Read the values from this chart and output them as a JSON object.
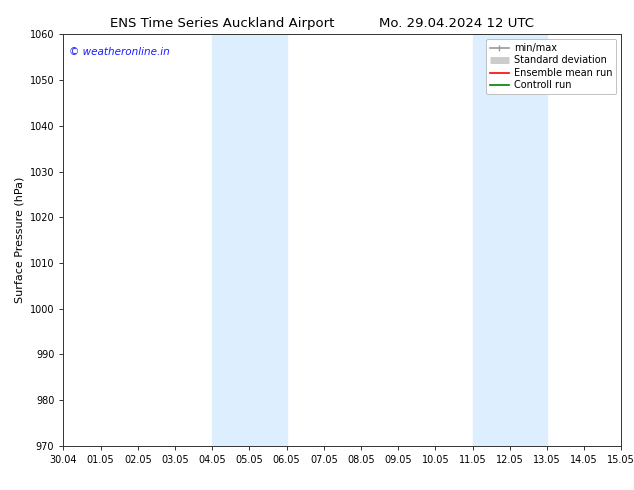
{
  "title_left": "ENS Time Series Auckland Airport",
  "title_right": "Mo. 29.04.2024 12 UTC",
  "ylabel": "Surface Pressure (hPa)",
  "ylim": [
    970,
    1060
  ],
  "yticks": [
    970,
    980,
    990,
    1000,
    1010,
    1020,
    1030,
    1040,
    1050,
    1060
  ],
  "xtick_labels": [
    "30.04",
    "01.05",
    "02.05",
    "03.05",
    "04.05",
    "05.05",
    "06.05",
    "07.05",
    "08.05",
    "09.05",
    "10.05",
    "11.05",
    "12.05",
    "13.05",
    "14.05",
    "15.05"
  ],
  "xtick_positions": [
    0,
    1,
    2,
    3,
    4,
    5,
    6,
    7,
    8,
    9,
    10,
    11,
    12,
    13,
    14,
    15
  ],
  "shade_bands": [
    {
      "x_start": 4.0,
      "x_end": 5.5,
      "color": "#ddeeff",
      "alpha": 1.0
    },
    {
      "x_start": 5.5,
      "x_end": 6.0,
      "color": "#ddeeff",
      "alpha": 1.0
    },
    {
      "x_start": 11.0,
      "x_end": 12.5,
      "color": "#ddeeff",
      "alpha": 1.0
    },
    {
      "x_start": 12.5,
      "x_end": 13.0,
      "color": "#ddeeff",
      "alpha": 1.0
    }
  ],
  "watermark_text": "© weatheronline.in",
  "watermark_color": "#1a1aff",
  "background_color": "#ffffff",
  "legend_entries": [
    {
      "label": "min/max",
      "color": "#999999",
      "lw": 1.2,
      "style": "solid"
    },
    {
      "label": "Standard deviation",
      "color": "#cccccc",
      "lw": 5,
      "style": "solid"
    },
    {
      "label": "Ensemble mean run",
      "color": "#ff0000",
      "lw": 1.2,
      "style": "solid"
    },
    {
      "label": "Controll run",
      "color": "#008000",
      "lw": 1.2,
      "style": "solid"
    }
  ],
  "title_fontsize": 9.5,
  "ylabel_fontsize": 8,
  "tick_fontsize": 7,
  "watermark_fontsize": 7.5,
  "legend_fontsize": 7,
  "spine_color": "#333333",
  "shade_color": "#ddeeff"
}
